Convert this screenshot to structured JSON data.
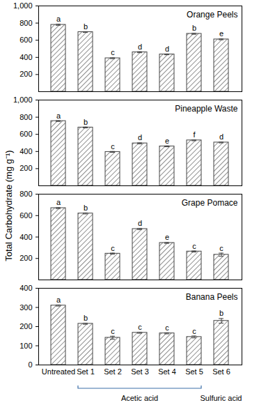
{
  "chart_data": [
    {
      "type": "bar",
      "title": "Orange Peels",
      "y_label": "Total Carbohydrate (mg g⁻¹)",
      "categories": [
        "Untreated",
        "Set 1",
        "Set 2",
        "Set 3",
        "Set 4",
        "Set 5",
        "Set 6"
      ],
      "values": [
        780,
        695,
        390,
        460,
        435,
        675,
        610
      ],
      "errors": [
        6,
        5,
        5,
        6,
        5,
        6,
        5
      ],
      "letters": [
        "a",
        "b",
        "c",
        "d",
        "d",
        "b",
        "e"
      ],
      "color": "#444444",
      "ylim": [
        0,
        1000
      ],
      "yticks": [
        200,
        400,
        600,
        800,
        1000
      ],
      "tick_labels": "y"
    },
    {
      "type": "bar",
      "title": "Pineapple Waste",
      "categories": [
        "Untreated",
        "Set 1",
        "Set 2",
        "Set 3",
        "Set 4",
        "Set 5",
        "Set 6"
      ],
      "values": [
        755,
        680,
        395,
        495,
        460,
        530,
        505
      ],
      "errors": [
        5,
        5,
        5,
        6,
        5,
        5,
        5
      ],
      "letters": [
        "a",
        "b",
        "c",
        "d",
        "e",
        "f",
        "d"
      ],
      "color": "#444444",
      "ylim": [
        0,
        1000
      ],
      "yticks": [
        200,
        400,
        600,
        800,
        1000
      ],
      "tick_labels": "y"
    },
    {
      "type": "bar",
      "title": "Grape Pomace",
      "categories": [
        "Untreated",
        "Set 1",
        "Set 2",
        "Set 3",
        "Set 4",
        "Set 5",
        "Set 6"
      ],
      "values": [
        670,
        620,
        245,
        475,
        345,
        265,
        235
      ],
      "errors": [
        5,
        5,
        5,
        6,
        5,
        5,
        15
      ],
      "letters": [
        "a",
        "b",
        "c",
        "d",
        "e",
        "c",
        "c"
      ],
      "color": "#444444",
      "ylim": [
        0,
        800
      ],
      "yticks": [
        200,
        400,
        600,
        800
      ],
      "tick_labels": "y"
    },
    {
      "type": "bar",
      "title": "Banana Peels",
      "categories": [
        "Untreated",
        "Set 1",
        "Set 2",
        "Set 3",
        "Set 4",
        "Set 5",
        "Set 6"
      ],
      "values": [
        310,
        215,
        142,
        168,
        165,
        146,
        230
      ],
      "errors": [
        3,
        3,
        8,
        3,
        3,
        5,
        12
      ],
      "letters": [
        "a",
        "b",
        "c",
        "c",
        "c",
        "c",
        "b"
      ],
      "color": "#444444",
      "ylim": [
        0,
        400
      ],
      "yticks": [
        0,
        100,
        200,
        300,
        400
      ],
      "groups": [
        {
          "label": "Acetic acid",
          "from": "Set 1",
          "to": "Set 5"
        },
        {
          "label": "Sulfuric acid",
          "from": "Set 6",
          "to": "Set 6"
        }
      ]
    }
  ]
}
